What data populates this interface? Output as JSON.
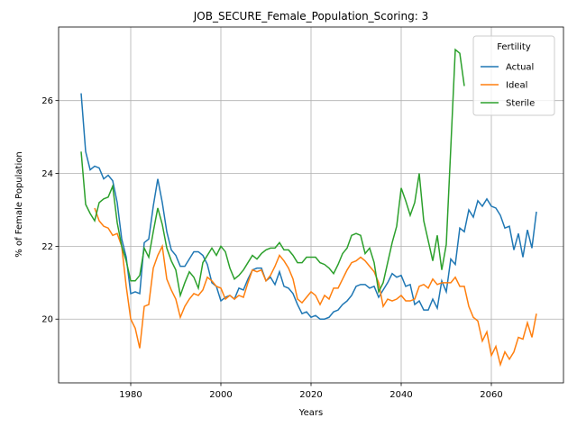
{
  "chart_data": {
    "type": "line",
    "title": "JOB_SECURE_Female_Population_Scoring: 3",
    "xlabel": "Years",
    "ylabel": "% of Female Population",
    "legend_title": "Fertility",
    "legend": "upper right",
    "grid": true,
    "xlim": [
      1964,
      2076
    ],
    "ylim": [
      18.25,
      28.02
    ],
    "xticks": [
      1980,
      2000,
      2020,
      2040,
      2060
    ],
    "yticks": [
      20,
      22,
      24,
      26
    ],
    "x": [
      1969,
      1970,
      1971,
      1972,
      1973,
      1974,
      1975,
      1976,
      1977,
      1978,
      1979,
      1980,
      1981,
      1982,
      1983,
      1984,
      1985,
      1986,
      1987,
      1988,
      1989,
      1990,
      1991,
      1992,
      1993,
      1994,
      1995,
      1996,
      1997,
      1998,
      1999,
      2000,
      2001,
      2002,
      2003,
      2004,
      2005,
      2006,
      2007,
      2008,
      2009,
      2010,
      2011,
      2012,
      2013,
      2014,
      2015,
      2016,
      2017,
      2018,
      2019,
      2020,
      2021,
      2022,
      2023,
      2024,
      2025,
      2026,
      2027,
      2028,
      2029,
      2030,
      2031,
      2032,
      2033,
      2034,
      2035,
      2036,
      2037,
      2038,
      2039,
      2040,
      2041,
      2042,
      2043,
      2044,
      2045,
      2046,
      2047,
      2048,
      2049,
      2050,
      2051,
      2052,
      2053,
      2054,
      2055,
      2056,
      2057,
      2058,
      2059,
      2060,
      2061,
      2062,
      2063,
      2064,
      2065,
      2066,
      2067,
      2068,
      2069,
      2070
    ],
    "series": [
      {
        "name": "Actual",
        "color": "#1f77b4",
        "values": [
          26.2,
          24.6,
          24.1,
          24.2,
          24.15,
          23.85,
          23.95,
          23.8,
          23.2,
          22.2,
          21.7,
          20.7,
          20.75,
          20.7,
          22.1,
          22.2,
          23.1,
          23.85,
          23.2,
          22.4,
          21.9,
          21.75,
          21.45,
          21.45,
          21.65,
          21.85,
          21.85,
          21.75,
          21.5,
          21.0,
          20.9,
          20.5,
          20.6,
          20.65,
          20.55,
          20.85,
          20.8,
          21.1,
          21.35,
          21.4,
          21.4,
          21.05,
          21.15,
          20.95,
          21.3,
          20.9,
          20.85,
          20.7,
          20.4,
          20.15,
          20.2,
          20.05,
          20.1,
          20.0,
          20.0,
          20.05,
          20.2,
          20.25,
          20.4,
          20.5,
          20.65,
          20.9,
          20.95,
          20.95,
          20.85,
          20.9,
          20.6,
          20.8,
          21.0,
          21.25,
          21.15,
          21.2,
          20.9,
          20.95,
          20.4,
          20.5,
          20.25,
          20.25,
          20.55,
          20.3,
          21.05,
          20.75,
          21.65,
          21.5,
          22.5,
          22.4,
          23.0,
          22.8,
          23.25,
          23.1,
          23.3,
          23.1,
          23.05,
          22.85,
          22.5,
          22.55,
          21.9,
          22.35,
          21.7,
          22.45,
          21.95,
          22.95
        ]
      },
      {
        "name": "Ideal",
        "color": "#ff7f0e",
        "values": [
          null,
          null,
          null,
          23.05,
          22.7,
          22.55,
          22.5,
          22.3,
          22.35,
          22.0,
          20.9,
          20.0,
          19.75,
          19.2,
          20.35,
          20.4,
          21.4,
          21.75,
          22.0,
          21.1,
          20.8,
          20.55,
          20.05,
          20.35,
          20.55,
          20.7,
          20.65,
          20.8,
          21.15,
          21.05,
          20.9,
          20.85,
          20.55,
          20.65,
          20.55,
          20.65,
          20.6,
          21.0,
          21.35,
          21.3,
          21.35,
          21.05,
          21.2,
          21.45,
          21.75,
          21.6,
          21.4,
          21.1,
          20.55,
          20.45,
          20.6,
          20.75,
          20.65,
          20.4,
          20.65,
          20.55,
          20.85,
          20.85,
          21.1,
          21.35,
          21.55,
          21.6,
          21.7,
          21.6,
          21.45,
          21.3,
          21.0,
          20.35,
          20.55,
          20.5,
          20.55,
          20.65,
          20.5,
          20.5,
          20.55,
          20.9,
          20.95,
          20.85,
          21.1,
          20.95,
          21.0,
          21.0,
          21.0,
          21.15,
          20.9,
          20.9,
          20.35,
          20.05,
          19.95,
          19.4,
          19.65,
          19.0,
          19.25,
          18.75,
          19.1,
          18.9,
          19.1,
          19.5,
          19.45,
          19.9,
          19.5,
          20.15
        ]
      },
      {
        "name": "Sterile",
        "color": "#2ca02c",
        "values": [
          24.6,
          23.15,
          22.9,
          22.7,
          23.2,
          23.3,
          23.35,
          23.65,
          22.65,
          22.0,
          21.6,
          21.05,
          21.05,
          21.2,
          21.95,
          21.7,
          22.4,
          23.05,
          22.6,
          21.95,
          21.6,
          21.35,
          20.65,
          21.0,
          21.3,
          21.15,
          20.85,
          21.55,
          21.75,
          21.95,
          21.75,
          22.0,
          21.85,
          21.4,
          21.1,
          21.2,
          21.35,
          21.55,
          21.75,
          21.65,
          21.8,
          21.9,
          21.95,
          21.95,
          22.1,
          21.9,
          21.9,
          21.75,
          21.55,
          21.55,
          21.7,
          21.7,
          21.7,
          21.55,
          21.5,
          21.4,
          21.25,
          21.5,
          21.8,
          21.95,
          22.3,
          22.35,
          22.3,
          21.8,
          21.95,
          21.55,
          20.75,
          21.0,
          21.55,
          22.1,
          22.55,
          23.6,
          23.25,
          22.85,
          23.2,
          24.0,
          22.7,
          22.15,
          21.6,
          22.3,
          21.35,
          22.05,
          24.7,
          27.4,
          27.3,
          26.4,
          null,
          null,
          null,
          null,
          null,
          null,
          null,
          null,
          null,
          null,
          null,
          null,
          null,
          null,
          null,
          null
        ]
      }
    ]
  }
}
